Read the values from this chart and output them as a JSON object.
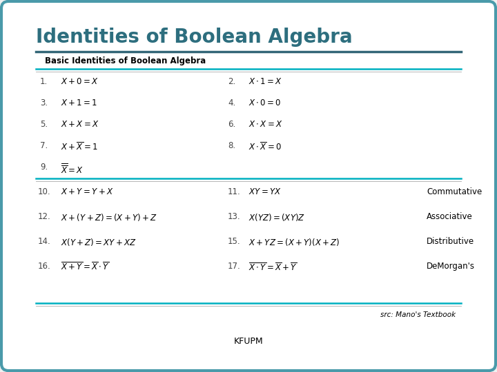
{
  "title": "Identities of Boolean Algebra",
  "subtitle": "Basic Identities of Boolean Algebra",
  "title_color": "#2d6e7e",
  "bg_color": "#f0f0f0",
  "inner_bg": "#ffffff",
  "border_color": "#4a9aaa",
  "source_text": "src: Mano's Textbook",
  "footer_text": "KFUPM",
  "cyan_color": "#00b0c0",
  "dark_line_color": "#336677",
  "left_col": [
    [
      "1.",
      "$X+0=X$"
    ],
    [
      "3.",
      "$X+1=1$"
    ],
    [
      "5.",
      "$X+X=X$"
    ],
    [
      "7.",
      "$X+\\overline{X}=1$"
    ],
    [
      "9.",
      "$\\overline{\\overline{X}}=X$"
    ]
  ],
  "right_col": [
    [
      "2.",
      "$X\\cdot1=X$"
    ],
    [
      "4.",
      "$X\\cdot0=0$"
    ],
    [
      "6.",
      "$X\\cdot X=X$"
    ],
    [
      "8.",
      "$X\\cdot\\overline{X}=0$"
    ],
    [
      "",
      ""
    ]
  ],
  "left_col2": [
    [
      "10.",
      "$X+Y=Y+X$"
    ],
    [
      "12.",
      "$X+(Y+Z)=(X+Y)+Z$"
    ],
    [
      "14.",
      "$X(Y+Z)=XY+XZ$"
    ],
    [
      "16.",
      "$\\overline{X+Y}=\\overline{X}\\cdot\\overline{Y}$"
    ]
  ],
  "right_col2": [
    [
      "11.",
      "$XY=YX$"
    ],
    [
      "13.",
      "$X(YZ)=(XY)Z$"
    ],
    [
      "15.",
      "$X+YZ=(X+Y)(X+Z)$"
    ],
    [
      "17.",
      "$\\overline{X\\cdot Y}=\\overline{X}+\\overline{Y}$"
    ]
  ],
  "laws": [
    "Commutative",
    "Associative",
    "Distributive",
    "DeMorgan's"
  ]
}
